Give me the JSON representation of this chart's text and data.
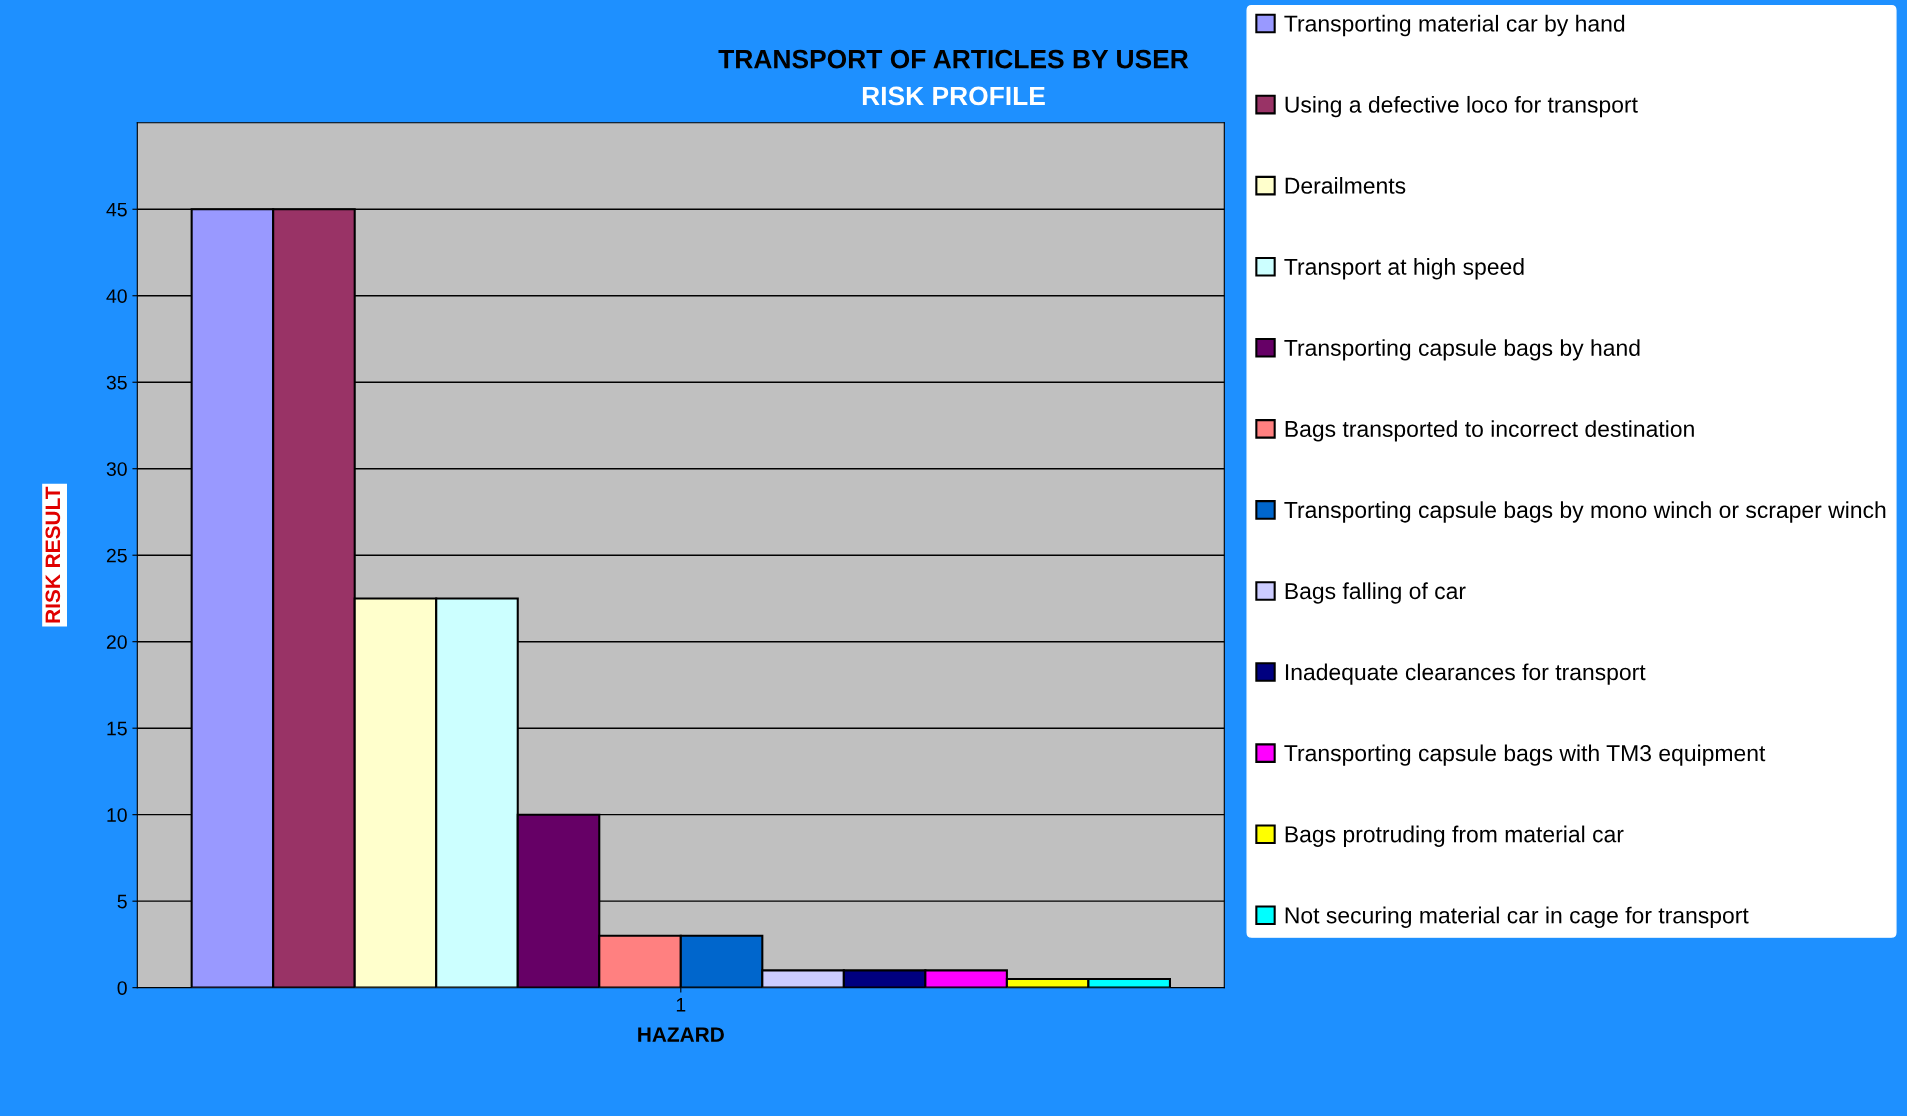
{
  "chart_data": {
    "type": "bar",
    "title": "TRANSPORT OF ARTICLES BY USER",
    "subtitle": "RISK PROFILE",
    "xlabel": "HAZARD",
    "ylabel": "RISK RESULT",
    "categories": [
      "1"
    ],
    "series": [
      {
        "name": "Transporting material car by hand",
        "color": "#9999ff",
        "values": [
          45
        ]
      },
      {
        "name": "Using a defective loco for transport",
        "color": "#993366",
        "values": [
          45
        ]
      },
      {
        "name": "Derailments",
        "color": "#ffffcc",
        "values": [
          22.5
        ]
      },
      {
        "name": "Transport at high speed",
        "color": "#ccffff",
        "values": [
          22.5
        ]
      },
      {
        "name": "Transporting capsule bags by hand",
        "color": "#660066",
        "values": [
          10
        ]
      },
      {
        "name": "Bags transported to incorrect destination",
        "color": "#ff8080",
        "values": [
          3
        ]
      },
      {
        "name": "Transporting capsule bags by mono winch or scraper winch",
        "color": "#0066cc",
        "values": [
          3
        ]
      },
      {
        "name": "Bags falling of car",
        "color": "#ccccff",
        "values": [
          1
        ]
      },
      {
        "name": "Inadequate clearances for transport",
        "color": "#000080",
        "values": [
          1
        ]
      },
      {
        "name": "Transporting capsule bags with TM3 equipment",
        "color": "#ff00ff",
        "values": [
          1
        ]
      },
      {
        "name": "Bags protruding from material car",
        "color": "#ffff00",
        "values": [
          0.5
        ]
      },
      {
        "name": "Not securing material car in cage for transport",
        "color": "#00ffff",
        "values": [
          0.5
        ]
      }
    ],
    "ylim": [
      0,
      50
    ],
    "yticks": [
      0,
      5,
      10,
      15,
      20,
      25,
      30,
      35,
      40,
      45
    ],
    "grid": "y",
    "legend": "right"
  }
}
